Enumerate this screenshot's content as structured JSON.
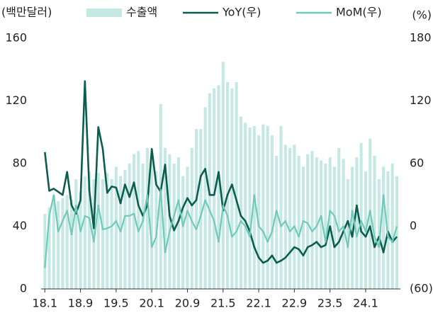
{
  "chart_data": {
    "type": "bar",
    "ylabel": "(백만달러)",
    "y2label": "(%)",
    "categories": [
      "18.1",
      null,
      null,
      null,
      null,
      null,
      null,
      null,
      "18.9",
      null,
      null,
      null,
      null,
      null,
      null,
      null,
      "19.5",
      null,
      null,
      null,
      null,
      null,
      null,
      null,
      "20.1",
      null,
      null,
      null,
      null,
      null,
      null,
      null,
      "20.9",
      null,
      null,
      null,
      null,
      null,
      null,
      null,
      "21.5",
      null,
      null,
      null,
      null,
      null,
      null,
      null,
      "22.1",
      null,
      null,
      null,
      null,
      null,
      null,
      null,
      "22.9",
      null,
      null,
      null,
      null,
      null,
      null,
      null,
      "23.5",
      null,
      null,
      null,
      null,
      null,
      null,
      null,
      "24.1",
      null,
      null,
      null,
      null,
      null,
      null,
      null
    ],
    "series": [
      {
        "name": "수출액",
        "type": "bar",
        "color": "#c4e8e2",
        "values": [
          48,
          52,
          60,
          56,
          58,
          60,
          57,
          70,
          62,
          72,
          75,
          70,
          74,
          70,
          74,
          70,
          78,
          72,
          76,
          80,
          86,
          88,
          80,
          90,
          85,
          75,
          118,
          90,
          86,
          80,
          84,
          72,
          78,
          90,
          102,
          102,
          116,
          125,
          128,
          130,
          145,
          132,
          128,
          132,
          110,
          106,
          103,
          104,
          98,
          105,
          104,
          98,
          85,
          104,
          92,
          90,
          92,
          85,
          78,
          86,
          88,
          84,
          82,
          80,
          84,
          78,
          90,
          83,
          70,
          78,
          84,
          93,
          75,
          96,
          85,
          70,
          78,
          75,
          80,
          72
        ]
      },
      {
        "name": "YoY(우)",
        "type": "line",
        "axis": "y2",
        "color": "#0b5e4e",
        "values": [
          71,
          34,
          36,
          33,
          30,
          52,
          20,
          12,
          25,
          139,
          34,
          -2,
          95,
          74,
          32,
          38,
          37,
          22,
          40,
          28,
          42,
          20,
          10,
          20,
          74,
          40,
          33,
          59,
          10,
          -4,
          5,
          18,
          27,
          20,
          25,
          48,
          55,
          30,
          30,
          52,
          15,
          30,
          40,
          25,
          10,
          5,
          -5,
          -20,
          -30,
          -35,
          -33,
          -28,
          -35,
          -33,
          -30,
          -25,
          -20,
          -22,
          -28,
          -20,
          -18,
          -15,
          -20,
          -18,
          0,
          -20,
          -15,
          -5,
          5,
          -10,
          20,
          -5,
          -10,
          0,
          -20,
          -10,
          -25,
          -5,
          -15,
          -10
        ]
      },
      {
        "name": "MoM(우)",
        "type": "line",
        "axis": "y2",
        "color": "#6fcab9",
        "values": [
          -40,
          10,
          30,
          -5,
          5,
          15,
          -8,
          20,
          -5,
          10,
          8,
          -15,
          20,
          -3,
          -2,
          0,
          5,
          -5,
          10,
          10,
          12,
          -5,
          5,
          30,
          -20,
          -10,
          35,
          -25,
          -5,
          10,
          25,
          0,
          15,
          5,
          -3,
          10,
          25,
          15,
          5,
          -15,
          20,
          10,
          -10,
          -5,
          5,
          0,
          -10,
          30,
          0,
          -5,
          -15,
          -5,
          15,
          0,
          5,
          -5,
          0,
          -10,
          5,
          3,
          -5,
          0,
          10,
          -15,
          15,
          10,
          -5,
          0,
          -20,
          15,
          -10,
          5,
          -5,
          15,
          -10,
          -20,
          30,
          -10,
          -15,
          0
        ]
      }
    ],
    "ylim": [
      0,
      160
    ],
    "yticks": [
      0,
      40,
      80,
      120,
      160
    ],
    "y2lim": [
      -60,
      180
    ],
    "y2ticks": [
      {
        "value": -60,
        "label": "(60)"
      },
      0,
      60,
      120,
      180
    ]
  }
}
